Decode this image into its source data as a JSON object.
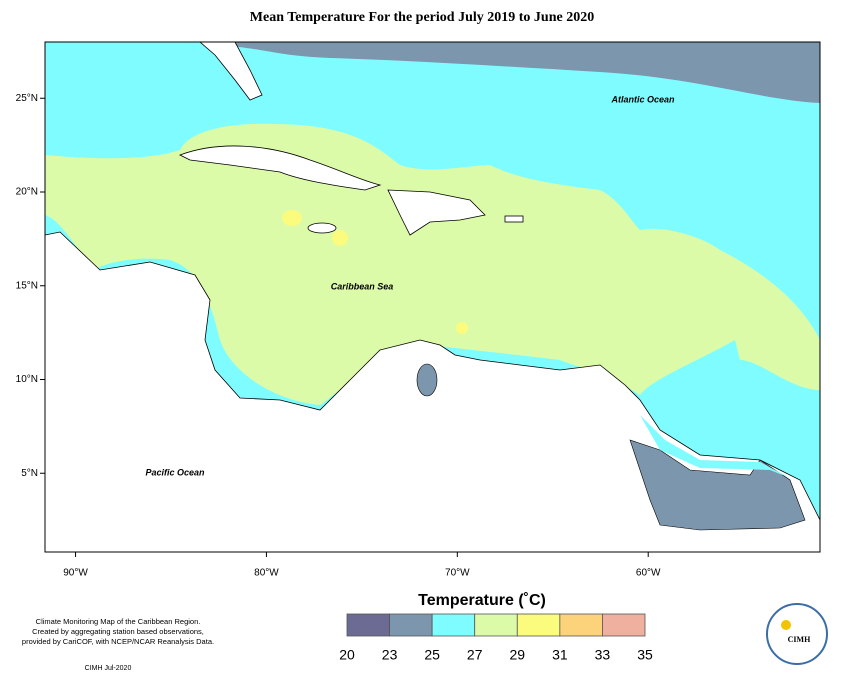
{
  "title": "Mean Temperature For the period July 2019 to June 2020",
  "map": {
    "xlim": [
      -91.6,
      -51
    ],
    "ylim": [
      0.8,
      28
    ],
    "xticks": [
      {
        "value": -90,
        "label": "90°W"
      },
      {
        "value": -80,
        "label": "80°W"
      },
      {
        "value": -70,
        "label": "70°W"
      },
      {
        "value": -60,
        "label": "60°W"
      }
    ],
    "yticks": [
      {
        "value": 5,
        "label": "5°N"
      },
      {
        "value": 10,
        "label": "10°N"
      },
      {
        "value": 15,
        "label": "15°N"
      },
      {
        "value": 20,
        "label": "20°N"
      },
      {
        "value": 25,
        "label": "25°N"
      }
    ],
    "labels": [
      "Atlantic Ocean",
      "Caribbean Sea",
      "Pacific Ocean"
    ]
  },
  "legend": {
    "title": "Temperature (˚C)",
    "ticks": [
      20,
      23,
      25,
      27,
      29,
      31,
      33,
      35
    ],
    "colors": [
      "#6b6b94",
      "#7b96ad",
      "#7ffcff",
      "#dcfba8",
      "#fbfb7d",
      "#fcd27a",
      "#f0b0a0"
    ]
  },
  "notes": [
    "Climate Monitoring Map of the Caribbean Region.",
    "Created by aggregating station based observations,",
    "provided by CariCOF, with NCEP/NCAR Reanalysis Data."
  ],
  "credit": "CIMH Jul-2020",
  "logo": "CIMH"
}
